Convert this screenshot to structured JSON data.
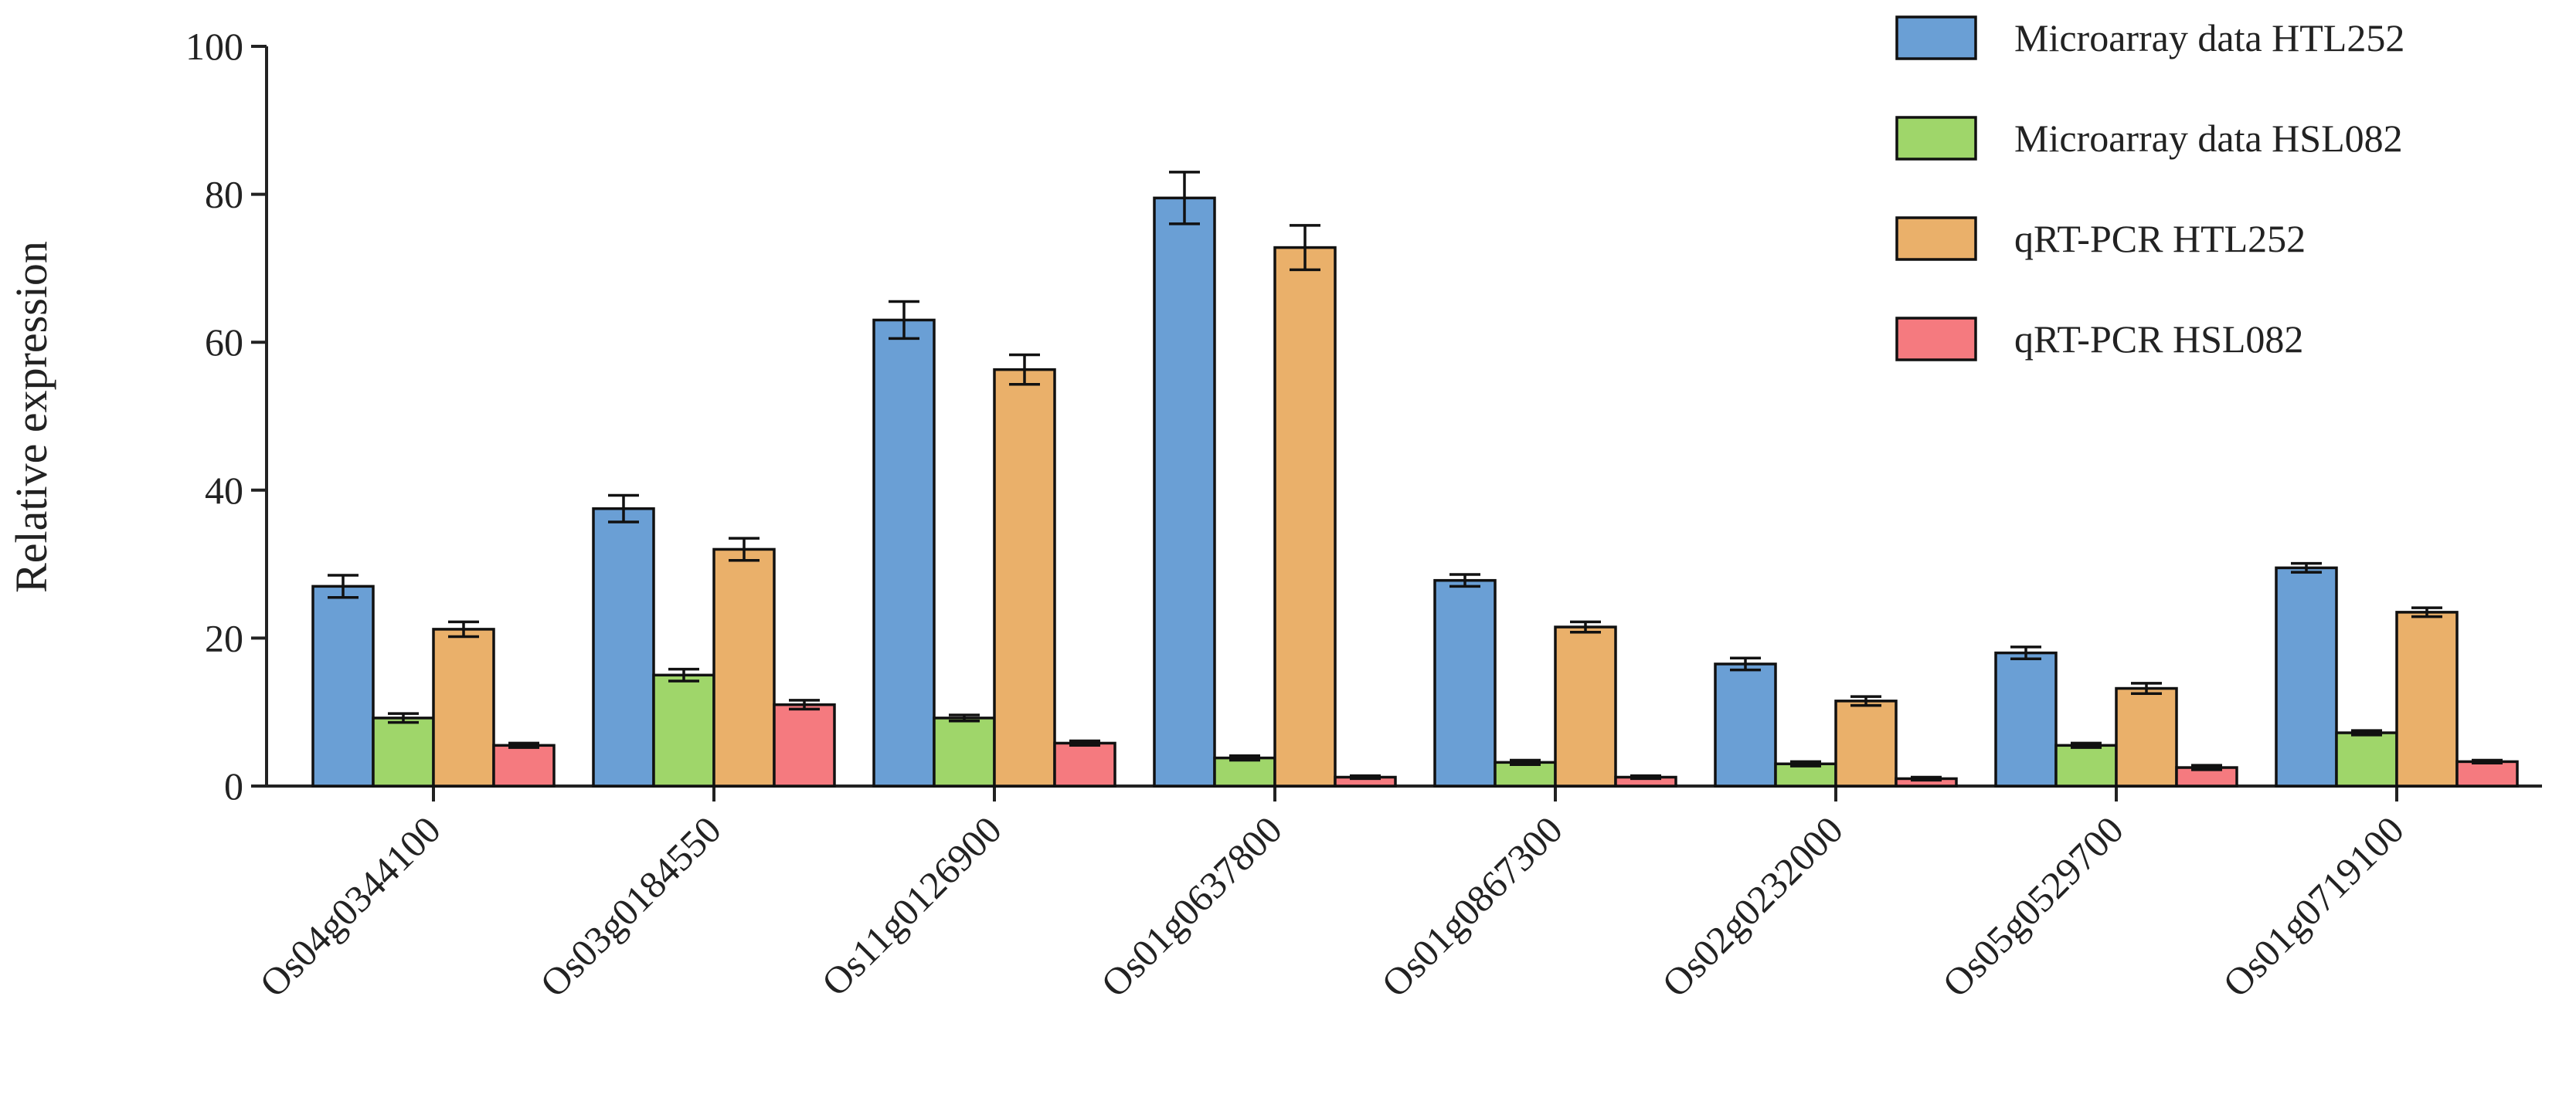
{
  "chart_data": {
    "type": "bar",
    "title": "",
    "xlabel": "",
    "ylabel": "Relative expression",
    "ylim": [
      0,
      100
    ],
    "yticks": [
      0,
      20,
      40,
      60,
      80,
      100
    ],
    "grid": false,
    "legend_position": "top-right",
    "categories": [
      "Os04g0344100",
      "Os03g0184550",
      "Os11g0126900",
      "Os01g0637800",
      "Os01g0867300",
      "Os02g0232000",
      "Os05g0529700",
      "Os01g0719100"
    ],
    "series": [
      {
        "name": "Microarray data  HTL252",
        "color": "#6a9fd5",
        "values": [
          27.0,
          37.5,
          63.0,
          79.5,
          27.8,
          16.5,
          18.0,
          29.5
        ],
        "errors": [
          1.5,
          1.8,
          2.5,
          3.5,
          0.8,
          0.8,
          0.8,
          0.6
        ]
      },
      {
        "name": "Microarray data  HSL082",
        "color": "#9fd66a",
        "values": [
          9.2,
          15.0,
          9.2,
          3.8,
          3.2,
          3.0,
          5.5,
          7.2
        ],
        "errors": [
          0.6,
          0.8,
          0.4,
          0.3,
          0.3,
          0.3,
          0.3,
          0.3
        ]
      },
      {
        "name": "qRT-PCR HTL252",
        "color": "#eab06a",
        "values": [
          21.2,
          32.0,
          56.3,
          72.8,
          21.5,
          11.5,
          13.2,
          23.5
        ],
        "errors": [
          1.0,
          1.5,
          2.0,
          3.0,
          0.7,
          0.6,
          0.7,
          0.6
        ]
      },
      {
        "name": "qRT-PCR HSL082",
        "color": "#f57a7f",
        "values": [
          5.5,
          11.0,
          5.8,
          1.2,
          1.2,
          1.0,
          2.5,
          3.3
        ],
        "errors": [
          0.3,
          0.6,
          0.3,
          0.2,
          0.2,
          0.2,
          0.3,
          0.2
        ]
      }
    ]
  }
}
